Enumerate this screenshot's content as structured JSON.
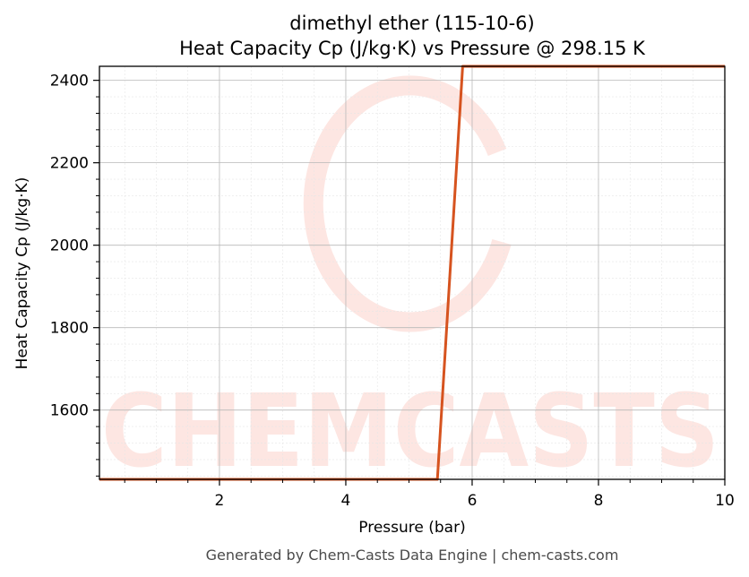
{
  "chart_data": {
    "type": "line",
    "title_lines": [
      "dimethyl ether (115-10-6)",
      "Heat Capacity Cp (J/kg·K) vs Pressure @ 298.15 K"
    ],
    "xlabel": "Pressure (bar)",
    "ylabel": "Heat Capacity Cp (J/kg·K)",
    "xlim": [
      0.1,
      10
    ],
    "ylim": [
      1432,
      2434
    ],
    "x_ticks": [
      2,
      4,
      6,
      8,
      10
    ],
    "y_ticks": [
      1600,
      1800,
      2000,
      2200,
      2400
    ],
    "grid": true,
    "minor_grid": true,
    "series": [
      {
        "color": "#d6531f",
        "x": [
          0.1,
          5.45,
          5.85,
          10
        ],
        "y": [
          1432,
          1432,
          2434,
          2434
        ]
      }
    ]
  },
  "watermark": {
    "text": "CHEMCASTS",
    "color": "#fde6e2"
  },
  "footer": "Generated by Chem-Casts Data Engine | chem-casts.com"
}
